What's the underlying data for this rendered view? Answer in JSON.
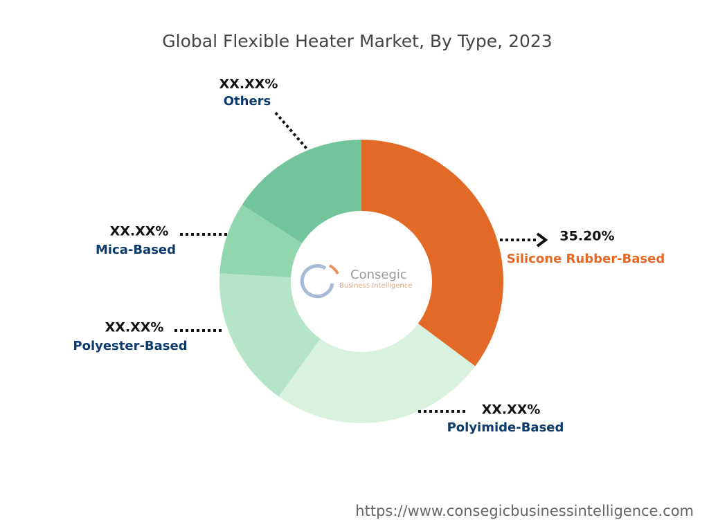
{
  "chart_data": {
    "type": "donut",
    "title": "Global Flexible Heater Market, By Type, 2023",
    "categories": [
      "Silicone Rubber-Based",
      "Polyimide-Based",
      "Polyester-Based",
      "Mica-Based",
      "Others"
    ],
    "values": [
      35.2,
      24.7,
      16.0,
      8.2,
      15.9
    ],
    "value_labels": [
      "35.20%",
      "XX.XX%",
      "XX.XX%",
      "XX.XX%",
      "XX.XX%"
    ],
    "colors": [
      "#e36a26",
      "#d9f2df",
      "#b4e5c7",
      "#92d6ad",
      "#72c59a"
    ],
    "label_colors": [
      "#e36a26",
      "#0b3a6b",
      "#0b3a6b",
      "#0b3a6b",
      "#0b3a6b"
    ],
    "watermark": [
      "Consegic",
      "Business Intelligence"
    ],
    "source_url": "https://www.consegicbusinessintelligence.com"
  }
}
